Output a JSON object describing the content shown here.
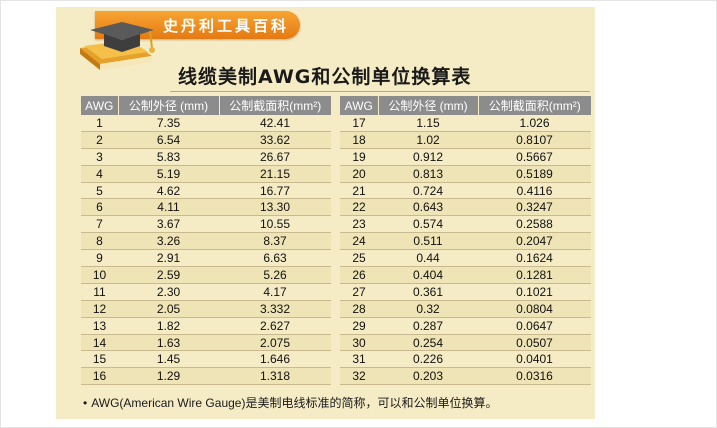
{
  "banner": {
    "text": "史丹利工具百科"
  },
  "title": "线缆美制AWG和公制单位换算表",
  "headers": {
    "awg": "AWG",
    "diameter": "公制外径 (mm)",
    "area": "公制截面积(mm²)"
  },
  "left_rows": [
    {
      "awg": "1",
      "d": "7.35",
      "a": "42.41"
    },
    {
      "awg": "2",
      "d": "6.54",
      "a": "33.62"
    },
    {
      "awg": "3",
      "d": "5.83",
      "a": "26.67"
    },
    {
      "awg": "4",
      "d": "5.19",
      "a": "21.15"
    },
    {
      "awg": "5",
      "d": "4.62",
      "a": "16.77"
    },
    {
      "awg": "6",
      "d": "4.11",
      "a": "13.30"
    },
    {
      "awg": "7",
      "d": "3.67",
      "a": "10.55"
    },
    {
      "awg": "8",
      "d": "3.26",
      "a": "8.37"
    },
    {
      "awg": "9",
      "d": "2.91",
      "a": "6.63"
    },
    {
      "awg": "10",
      "d": "2.59",
      "a": "5.26"
    },
    {
      "awg": "11",
      "d": "2.30",
      "a": "4.17"
    },
    {
      "awg": "12",
      "d": "2.05",
      "a": "3.332"
    },
    {
      "awg": "13",
      "d": "1.82",
      "a": "2.627"
    },
    {
      "awg": "14",
      "d": "1.63",
      "a": "2.075"
    },
    {
      "awg": "15",
      "d": "1.45",
      "a": "1.646"
    },
    {
      "awg": "16",
      "d": "1.29",
      "a": "1.318"
    }
  ],
  "right_rows": [
    {
      "awg": "17",
      "d": "1.15",
      "a": "1.026"
    },
    {
      "awg": "18",
      "d": "1.02",
      "a": "0.8107"
    },
    {
      "awg": "19",
      "d": "0.912",
      "a": "0.5667"
    },
    {
      "awg": "20",
      "d": "0.813",
      "a": "0.5189"
    },
    {
      "awg": "21",
      "d": "0.724",
      "a": "0.4116"
    },
    {
      "awg": "22",
      "d": "0.643",
      "a": "0.3247"
    },
    {
      "awg": "23",
      "d": "0.574",
      "a": "0.2588"
    },
    {
      "awg": "24",
      "d": "0.511",
      "a": "0.2047"
    },
    {
      "awg": "25",
      "d": "0.44",
      "a": "0.1624"
    },
    {
      "awg": "26",
      "d": "0.404",
      "a": "0.1281"
    },
    {
      "awg": "27",
      "d": "0.361",
      "a": "0.1021"
    },
    {
      "awg": "28",
      "d": "0.32",
      "a": "0.0804"
    },
    {
      "awg": "29",
      "d": "0.287",
      "a": "0.0647"
    },
    {
      "awg": "30",
      "d": "0.254",
      "a": "0.0507"
    },
    {
      "awg": "31",
      "d": "0.226",
      "a": "0.0401"
    },
    {
      "awg": "32",
      "d": "0.203",
      "a": "0.0316"
    }
  ],
  "footnote": "AWG(American Wire Gauge)是美制电线标准的简称，可以和公制单位换算。",
  "colors": {
    "card_bg": "#f5ecc6",
    "banner_orange": "#f29a2e",
    "header_gray": "#8c8c8c",
    "row_stripe": "#efe4b6"
  },
  "icons": {
    "logo": "book-with-graduation-cap-icon"
  }
}
